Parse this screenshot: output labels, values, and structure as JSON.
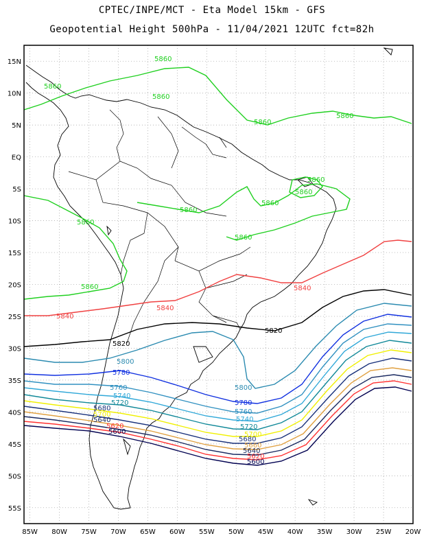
{
  "header": {
    "line1": "CPTEC/INPE/MCT -  Eta Model 15km - GFS",
    "line2": "Geopotential Height 500hPa - 11/04/2021 12UTC fct=82h"
  },
  "axes": {
    "lat_labels": [
      "15N",
      "10N",
      "5N",
      "EQ",
      "5S",
      "10S",
      "15S",
      "20S",
      "25S",
      "30S",
      "35S",
      "40S",
      "45S",
      "50S",
      "55S"
    ],
    "lon_labels": [
      "85W",
      "80W",
      "75W",
      "70W",
      "65W",
      "60W",
      "55W",
      "50W",
      "45W",
      "40W",
      "35W",
      "30W",
      "25W",
      "20W"
    ],
    "lat_range": [
      17.5,
      -57.5
    ],
    "lon_range": [
      -86,
      -20
    ],
    "grid": "dotted"
  },
  "contour_labels": {
    "green_5860": "5860",
    "red_5840": "5840",
    "black_5820": "5820",
    "l5800": "5800",
    "l5780": "5780",
    "l5760": "5760",
    "l5740": "5740",
    "l5720": "5720",
    "l5700": "5700",
    "l5680": "5680",
    "l5660": "5660",
    "l5640": "5640",
    "l5620": "5620",
    "l5600": "5600"
  },
  "colors": {
    "c5860": "#20d020",
    "c5840": "#f04040",
    "c5820": "#000000",
    "c5800": "#2a8ab0",
    "c5780": "#1030e0",
    "c5760": "#3090c0",
    "c5740": "#30a8d8",
    "c5720": "#108898",
    "c5700": "#f0f000",
    "c5680": "#18307a",
    "c5660": "#e0a040",
    "c5640": "#182860",
    "c5620": "#ff3030",
    "c5600": "#000050"
  }
}
